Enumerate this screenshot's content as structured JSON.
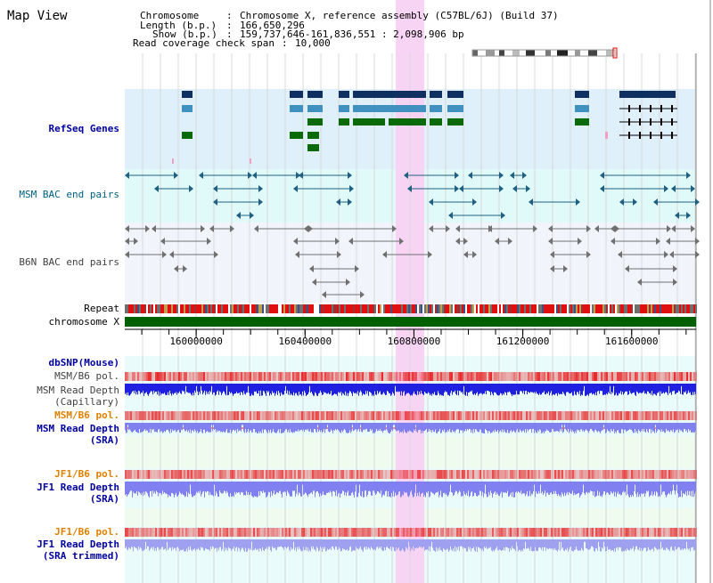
{
  "app": {
    "title": "Map View"
  },
  "header": {
    "chromosome_label": "Chromosome",
    "chromosome_value": "Chromosome X, reference assembly (C57BL/6J) (Build 37)",
    "length_label": "Length (b.p.)",
    "length_value": "166,650,296",
    "show_label": "Show (b.p.)",
    "show_value": "159,737,646-161,836,551 : 2,098,906 bp",
    "span_label": "Read coverage check span",
    "span_value": "10,000"
  },
  "tracks": {
    "refseq": "RefSeq Genes",
    "msm_bac": "MSM BAC end pairs",
    "b6n_bac": "B6N BAC end pairs",
    "repeat": "Repeat",
    "chromosome": "chromosome X",
    "dbsnp": "dbSNP(Mouse)",
    "msm_b6_pol_1": "MSM/B6 pol.",
    "msm_depth_cap_1": "MSM Read Depth",
    "msm_depth_cap_2": "(Capillary)",
    "msm_b6_pol_2": "MSM/B6 pol.",
    "msm_depth_sra_1": "MSM Read Depth",
    "msm_depth_sra_2": "(SRA)",
    "jf1_b6_pol_1": "JF1/B6 pol.",
    "jf1_depth_sra_1": "JF1 Read Depth",
    "jf1_depth_sra_2": "(SRA)",
    "jf1_b6_pol_2": "JF1/B6 pol.",
    "jf1_depth_trim_1": "JF1 Read Depth",
    "jf1_depth_trim_2": "(SRA trimmed)"
  },
  "axis": {
    "ticks": [
      "160000000",
      "160400000",
      "160800000",
      "161200000",
      "161600000"
    ],
    "tick_values": [
      160000000,
      160400000,
      160800000,
      161200000,
      161600000
    ],
    "range": [
      159737646,
      161836551
    ]
  },
  "colors": {
    "refseq_bg": "#dff0fa",
    "msm_bg": "#e0fafa",
    "b6n_bg": "#f2f4fb",
    "highlight": "#f8d4f4",
    "gene_dark": "#0f3060",
    "gene_mid": "#4090c0",
    "gene_green": "#0a6a0a",
    "chromosome": "#006000",
    "pol_red": "#f05050",
    "depth_blue": "#2020e0",
    "depth_light": "#8080f0"
  }
}
